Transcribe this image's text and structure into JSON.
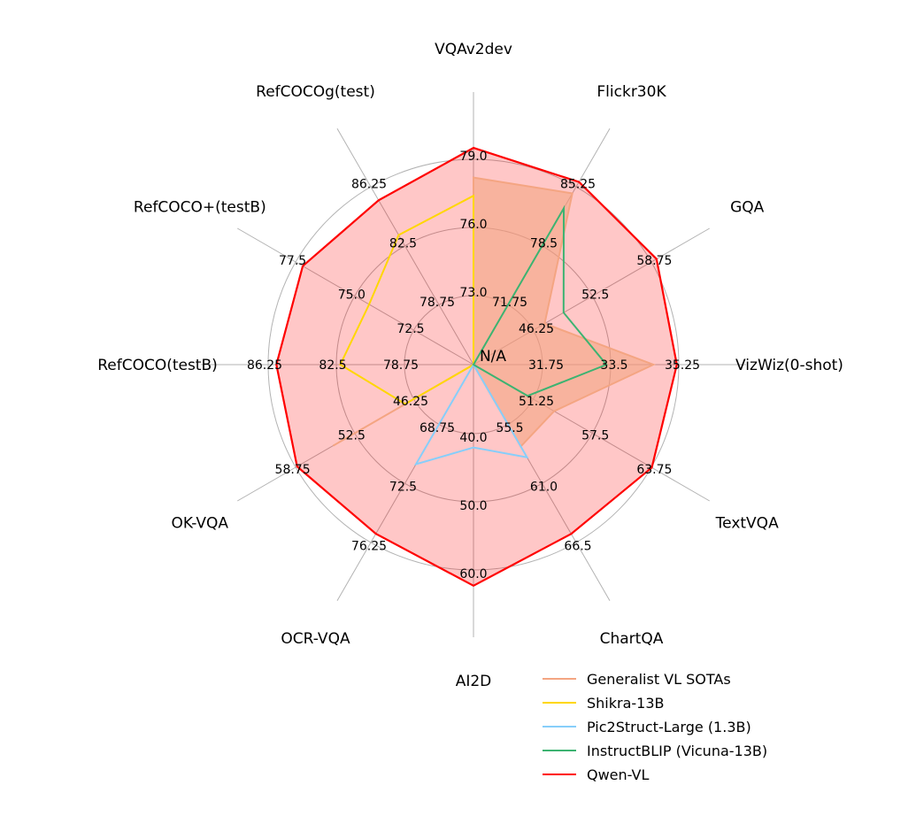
{
  "chart_data": {
    "type": "radar",
    "center_label": "N/A",
    "axes": [
      {
        "label": "VQAv2dev",
        "ticks": [
          "73.0",
          "76.0",
          "79.0"
        ]
      },
      {
        "label": "Flickr30K",
        "ticks": [
          "71.75",
          "78.5",
          "85.25"
        ]
      },
      {
        "label": "GQA",
        "ticks": [
          "46.25",
          "52.5",
          "58.75"
        ]
      },
      {
        "label": "VizWiz(0-shot)",
        "ticks": [
          "31.75",
          "33.5",
          "35.25"
        ]
      },
      {
        "label": "TextVQA",
        "ticks": [
          "51.25",
          "57.5",
          "63.75"
        ]
      },
      {
        "label": "ChartQA",
        "ticks": [
          "55.5",
          "61.0",
          "66.5"
        ]
      },
      {
        "label": "AI2D",
        "ticks": [
          "40.0",
          "50.0",
          "60.0"
        ]
      },
      {
        "label": "OCR-VQA",
        "ticks": [
          "68.75",
          "72.5",
          "76.25"
        ]
      },
      {
        "label": "OK-VQA",
        "ticks": [
          "46.25",
          "52.5",
          "58.75"
        ]
      },
      {
        "label": "RefCOCO(testB)",
        "ticks": [
          "78.75",
          "82.5",
          "86.25"
        ]
      },
      {
        "label": "RefCOCO+(testB)",
        "ticks": [
          "72.5",
          "75.0",
          "77.5"
        ]
      },
      {
        "label": "RefCOCOg(test)",
        "ticks": [
          "78.75",
          "82.5",
          "86.25"
        ]
      }
    ],
    "series": [
      {
        "name": "Generalist VL SOTAs",
        "color": "#f4a582",
        "fill": true,
        "values": [
          78.2,
          84.5,
          47.5,
          34.6,
          53.5,
          57.6,
          0,
          0,
          54.8,
          0,
          0,
          0
        ]
      },
      {
        "name": "Shikra-13B",
        "color": "#ffd700",
        "fill": false,
        "values": [
          77.4,
          0,
          0,
          0,
          0,
          0,
          0,
          0,
          47.2,
          82.3,
          74.4,
          83.2
        ]
      },
      {
        "name": "Pic2Struct-Large (1.3B)",
        "color": "#87cefa",
        "fill": false,
        "values": [
          0,
          0,
          0,
          0,
          0,
          58.6,
          42.1,
          71.3,
          0,
          0,
          0,
          0
        ]
      },
      {
        "name": "InstructBLIP (Vicuna-13B)",
        "color": "#3cb371",
        "fill": false,
        "values": [
          0,
          82.8,
          49.5,
          33.4,
          50.7,
          0,
          0,
          0,
          0,
          0,
          0,
          0
        ]
      },
      {
        "name": "Qwen-VL",
        "color": "#ff0000",
        "fill": true,
        "values": [
          79.5,
          85.8,
          59.3,
          35.2,
          63.8,
          65.7,
          62.3,
          75.7,
          58.6,
          85.8,
          77.2,
          85.4
        ]
      }
    ]
  }
}
